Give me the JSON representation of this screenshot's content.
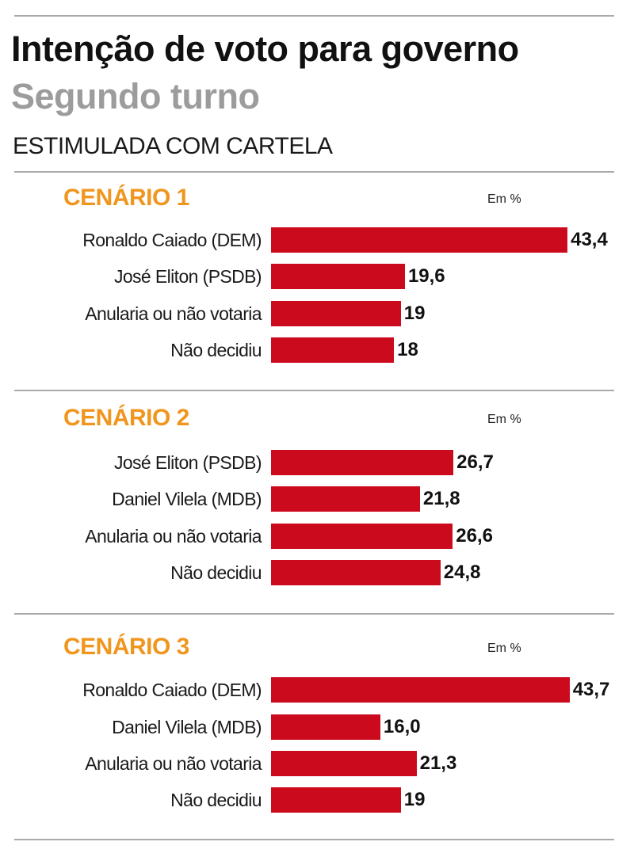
{
  "header": {
    "title": "Intenção de voto para governo",
    "subtitle": "Segundo turno",
    "kicker": "ESTIMULADA COM CARTELA"
  },
  "colors": {
    "bar": "#cc0a1e",
    "scenario_title": "#f0961e",
    "subtitle": "#9c9c9c"
  },
  "chart_data": [
    {
      "type": "bar",
      "orientation": "horizontal",
      "title": "CENÁRIO 1",
      "unit_label": "Em %",
      "categories": [
        "Ronaldo Caiado (DEM)",
        "José Eliton (PSDB)",
        "Anularia ou não votaria",
        "Não decidiu"
      ],
      "values": [
        43.4,
        19.6,
        19,
        18
      ],
      "value_labels": [
        "43,4",
        "19,6",
        "19",
        "18"
      ],
      "xlim": [
        0,
        43.7
      ],
      "grid": false
    },
    {
      "type": "bar",
      "orientation": "horizontal",
      "title": "CENÁRIO 2",
      "unit_label": "Em %",
      "categories": [
        "José Eliton (PSDB)",
        "Daniel Vilela (MDB)",
        "Anularia ou não votaria",
        "Não decidiu"
      ],
      "values": [
        26.7,
        21.8,
        26.6,
        24.8
      ],
      "value_labels": [
        "26,7",
        "21,8",
        "26,6",
        "24,8"
      ],
      "xlim": [
        0,
        43.7
      ],
      "grid": false
    },
    {
      "type": "bar",
      "orientation": "horizontal",
      "title": "CENÁRIO 3",
      "unit_label": "Em %",
      "categories": [
        "Ronaldo Caiado (DEM)",
        "Daniel Vilela (MDB)",
        "Anularia ou não votaria",
        "Não decidiu"
      ],
      "values": [
        43.7,
        16.0,
        21.3,
        19
      ],
      "value_labels": [
        "43,7",
        "16,0",
        "21,3",
        "19"
      ],
      "xlim": [
        0,
        43.7
      ],
      "grid": false
    }
  ]
}
